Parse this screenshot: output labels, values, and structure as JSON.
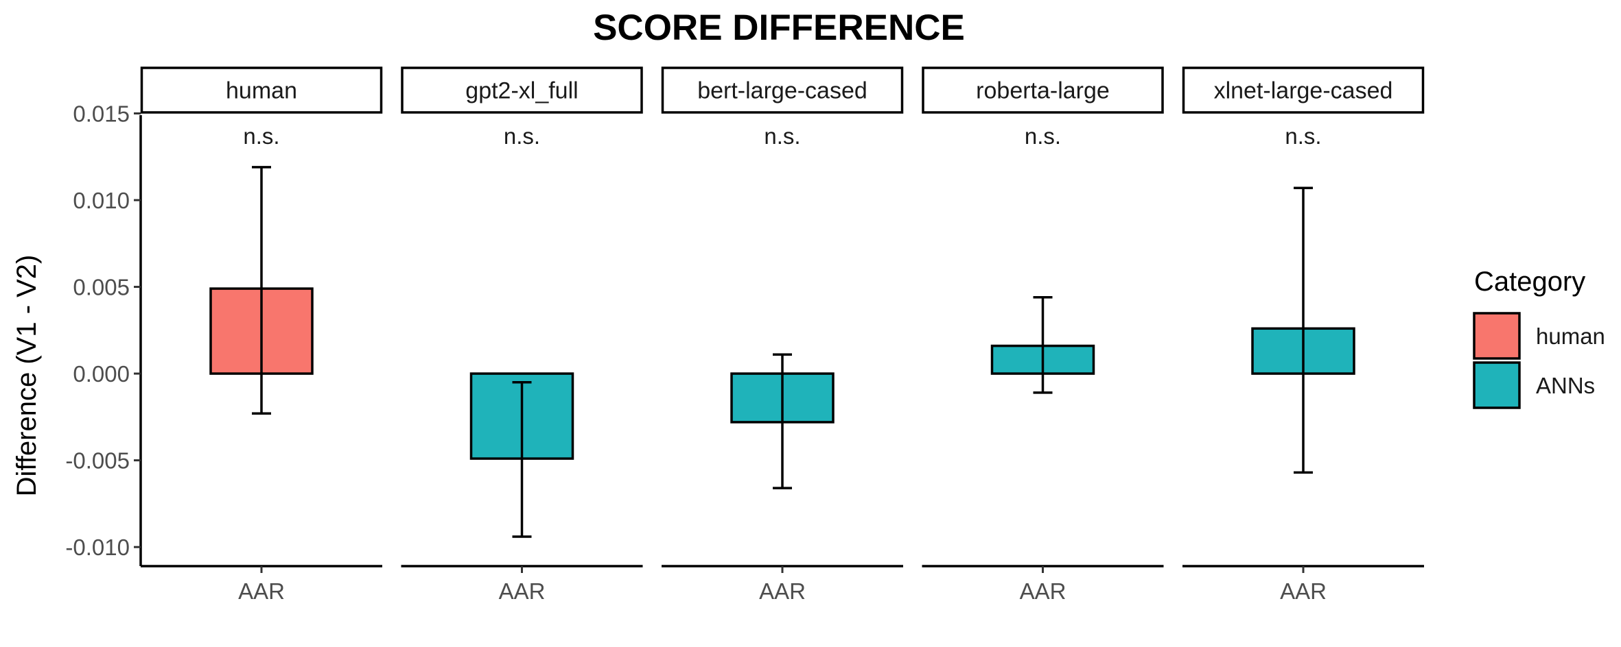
{
  "chart_data": {
    "type": "bar",
    "title": "SCORE DIFFERENCE",
    "ylabel": "Difference (V1 - V2)",
    "xlabel": "",
    "ylim": [
      -0.0111,
      0.0149
    ],
    "yticks": [
      -0.01,
      -0.005,
      0.0,
      0.005,
      0.01,
      0.015
    ],
    "ytick_labels": [
      "-0.010",
      "-0.005",
      "0.000",
      "0.005",
      "0.010",
      "0.015"
    ],
    "categories": [
      "AAR"
    ],
    "facets": [
      {
        "label": "human",
        "category": "human",
        "value": 0.0049,
        "err_low": -0.0023,
        "err_high": 0.0119,
        "annotation": "n.s."
      },
      {
        "label": "gpt2-xl_full",
        "category": "ANNs",
        "value": -0.0049,
        "err_low": -0.0094,
        "err_high": -0.0005,
        "annotation": "n.s."
      },
      {
        "label": "bert-large-cased",
        "category": "ANNs",
        "value": -0.0028,
        "err_low": -0.0066,
        "err_high": 0.0011,
        "annotation": "n.s."
      },
      {
        "label": "roberta-large",
        "category": "ANNs",
        "value": 0.0016,
        "err_low": -0.0011,
        "err_high": 0.0044,
        "annotation": "n.s."
      },
      {
        "label": "xlnet-large-cased",
        "category": "ANNs",
        "value": 0.0026,
        "err_low": -0.0057,
        "err_high": 0.0107,
        "annotation": "n.s."
      }
    ],
    "legend": {
      "title": "Category",
      "position": "right",
      "entries": [
        {
          "name": "human",
          "color": "#F8766D"
        },
        {
          "name": "ANNs",
          "color": "#1FB3BA"
        }
      ]
    },
    "grid": false
  }
}
